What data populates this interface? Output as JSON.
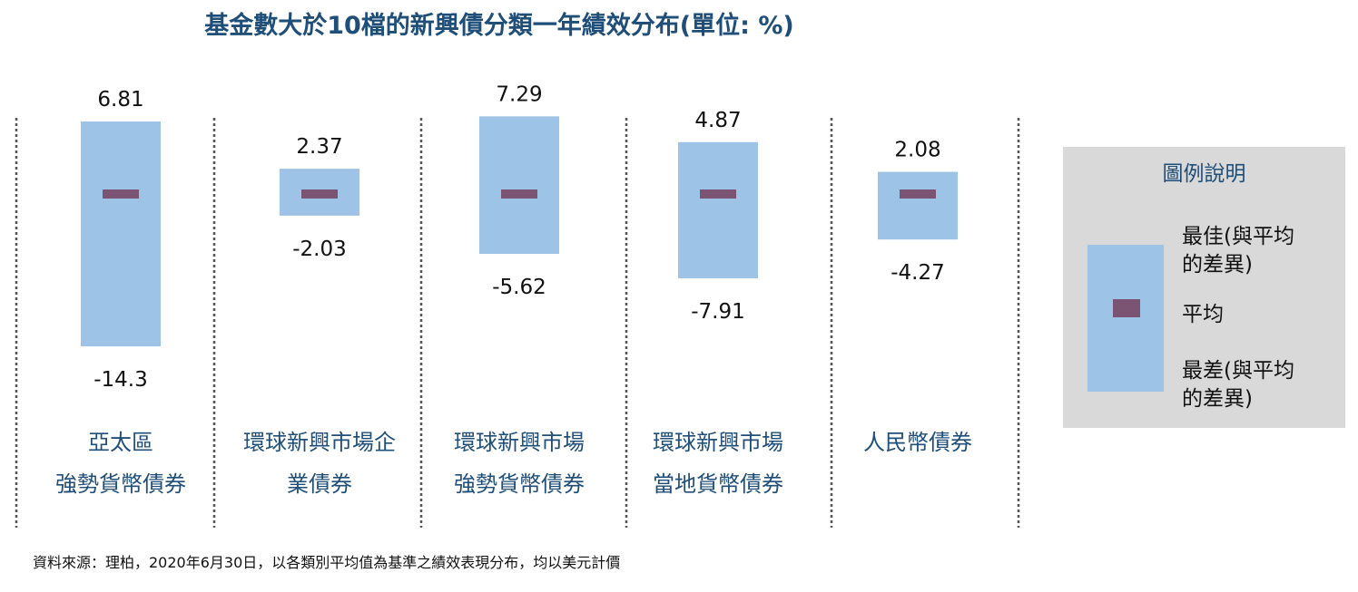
{
  "chart_title": "基金數大於10檔的新興債分類一年績效分布(單位: %)",
  "chart_data": {
    "type": "range-bar",
    "categories": [
      {
        "line1": "亞太區",
        "line2": "強勢貨幣債券"
      },
      {
        "line1": "環球新興市場企",
        "line2": "業債券"
      },
      {
        "line1": "環球新興市場",
        "line2": "強勢貨幣債券"
      },
      {
        "line1": "環球新興市場",
        "line2": "當地貨幣債券"
      },
      {
        "line1": "人民幣債券",
        "line2": ""
      }
    ],
    "best": [
      6.81,
      2.37,
      7.29,
      4.87,
      2.08
    ],
    "worst": [
      -14.3,
      -2.03,
      -5.62,
      -7.91,
      -4.27
    ],
    "best_labels": [
      "6.81",
      "2.37",
      "7.29",
      "4.87",
      "2.08"
    ],
    "worst_labels": [
      "-14.3",
      "-2.03",
      "-5.62",
      "-7.91",
      "-4.27"
    ],
    "mean": [
      0,
      0,
      0,
      0,
      0
    ],
    "colors": {
      "range": "#9dc3e6",
      "mean": "#7b5474",
      "label": "#1f4e79"
    }
  },
  "legend": {
    "title": "圖例說明",
    "best_line1": "最佳(與平均",
    "best_line2": "的差異)",
    "mean": "平均",
    "worst_line1": "最差(與平均",
    "worst_line2": "的差異)"
  },
  "source": "資料來源：理柏，2020年6月30日，以各類別平均值為基準之績效表現分布，均以美元計價"
}
